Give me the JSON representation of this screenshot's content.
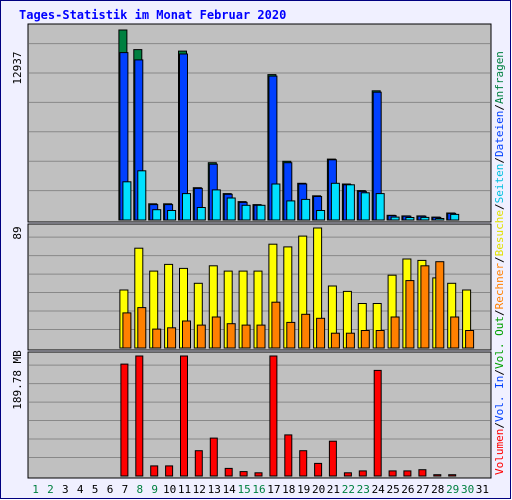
{
  "title": "Tages-Statistik im Monat Februar 2020",
  "colors": {
    "title": "#0000ff",
    "panel_bg": "#c0c0c0",
    "outer_bg": "#f0f0ff",
    "border": "#000080",
    "anfragen": "#008040",
    "dateien": "#0040ff",
    "seiten": "#00e0ff",
    "besuche": "#ffff00",
    "rechner": "#ff8000",
    "volumen": "#ff0000",
    "weekend_day": "#008040",
    "weekday": "#000000"
  },
  "y_scale_labels": {
    "top": "12937",
    "middle": "89",
    "bottom": "189.78 MB"
  },
  "legend_right": {
    "anfragen": "Anfragen",
    "dateien": "Dateien",
    "seiten": "Seiten",
    "besuche": "Besuche",
    "rechner": "Rechner",
    "out": "Vol. Out",
    "in": "Vol. In",
    "volumen": "Volumen",
    "sep": "/"
  },
  "days": [
    {
      "label": "1",
      "weekend": true
    },
    {
      "label": "2",
      "weekend": true
    },
    {
      "label": "3",
      "weekend": false
    },
    {
      "label": "4",
      "weekend": false
    },
    {
      "label": "5",
      "weekend": false
    },
    {
      "label": "6",
      "weekend": false
    },
    {
      "label": "7",
      "weekend": false
    },
    {
      "label": "8",
      "weekend": true
    },
    {
      "label": "9",
      "weekend": true
    },
    {
      "label": "10",
      "weekend": false
    },
    {
      "label": "11",
      "weekend": false
    },
    {
      "label": "12",
      "weekend": false
    },
    {
      "label": "13",
      "weekend": false
    },
    {
      "label": "14",
      "weekend": false
    },
    {
      "label": "15",
      "weekend": true
    },
    {
      "label": "16",
      "weekend": true
    },
    {
      "label": "17",
      "weekend": false
    },
    {
      "label": "18",
      "weekend": false
    },
    {
      "label": "19",
      "weekend": false
    },
    {
      "label": "20",
      "weekend": false
    },
    {
      "label": "21",
      "weekend": false
    },
    {
      "label": "22",
      "weekend": true
    },
    {
      "label": "23",
      "weekend": true
    },
    {
      "label": "24",
      "weekend": false
    },
    {
      "label": "25",
      "weekend": false
    },
    {
      "label": "26",
      "weekend": false
    },
    {
      "label": "27",
      "weekend": false
    },
    {
      "label": "28",
      "weekend": false
    },
    {
      "label": "29",
      "weekend": true
    },
    {
      "label": "30",
      "weekend": true
    },
    {
      "label": "31",
      "weekend": false
    }
  ],
  "chart_data": [
    {
      "type": "bar",
      "title": "Tages-Statistik im Monat Februar 2020",
      "ymax": 12937,
      "categories": [
        "1",
        "2",
        "3",
        "4",
        "5",
        "6",
        "7",
        "8",
        "9",
        "10",
        "11",
        "12",
        "13",
        "14",
        "15",
        "16",
        "17",
        "18",
        "19",
        "20",
        "21",
        "22",
        "23",
        "24",
        "25",
        "26",
        "27",
        "28",
        "29",
        "30",
        "31"
      ],
      "series": [
        {
          "name": "Anfragen",
          "color": "#008040",
          "values": [
            0,
            0,
            0,
            0,
            0,
            0,
            12937,
            11600,
            1100,
            1100,
            11500,
            2200,
            3900,
            1800,
            1250,
            1050,
            9900,
            4000,
            2500,
            1650,
            4150,
            2450,
            2000,
            8800,
            320,
            280,
            280,
            200,
            480,
            0,
            0
          ]
        },
        {
          "name": "Dateien",
          "color": "#0040ff",
          "values": [
            0,
            0,
            0,
            0,
            0,
            0,
            11400,
            10900,
            1050,
            1050,
            11300,
            2150,
            3800,
            1750,
            1200,
            1000,
            9800,
            3900,
            2450,
            1600,
            4100,
            2400,
            1950,
            8700,
            300,
            260,
            260,
            180,
            450,
            0,
            0
          ]
        },
        {
          "name": "Seiten",
          "color": "#00e0ff",
          "values": [
            0,
            0,
            0,
            0,
            0,
            0,
            2600,
            3350,
            700,
            650,
            1800,
            850,
            2050,
            1500,
            1000,
            1000,
            2450,
            1300,
            1400,
            650,
            2500,
            2400,
            1850,
            1800,
            200,
            170,
            180,
            100,
            380,
            0,
            0
          ]
        }
      ]
    },
    {
      "type": "bar",
      "ymax": 89,
      "categories": [
        "1",
        "2",
        "3",
        "4",
        "5",
        "6",
        "7",
        "8",
        "9",
        "10",
        "11",
        "12",
        "13",
        "14",
        "15",
        "16",
        "17",
        "18",
        "19",
        "20",
        "21",
        "22",
        "23",
        "24",
        "25",
        "26",
        "27",
        "28",
        "29",
        "30",
        "31"
      ],
      "series": [
        {
          "name": "Besuche",
          "color": "#ffff00",
          "values": [
            0,
            0,
            0,
            0,
            0,
            0,
            43,
            74,
            57,
            62,
            59,
            48,
            61,
            57,
            57,
            57,
            77,
            75,
            83,
            89,
            46,
            42,
            33,
            33,
            54,
            66,
            65,
            52,
            48,
            43,
            0
          ]
        },
        {
          "name": "Rechner",
          "color": "#ff8000",
          "values": [
            0,
            0,
            0,
            0,
            0,
            0,
            26,
            30,
            14,
            15,
            20,
            17,
            23,
            18,
            17,
            17,
            34,
            19,
            25,
            22,
            11,
            11,
            13,
            13,
            23,
            50,
            61,
            64,
            23,
            13,
            0
          ]
        }
      ]
    },
    {
      "type": "bar",
      "ymax": 189.78,
      "unit": "MB",
      "categories": [
        "1",
        "2",
        "3",
        "4",
        "5",
        "6",
        "7",
        "8",
        "9",
        "10",
        "11",
        "12",
        "13",
        "14",
        "15",
        "16",
        "17",
        "18",
        "19",
        "20",
        "21",
        "22",
        "23",
        "24",
        "25",
        "26",
        "27",
        "28",
        "29",
        "30",
        "31"
      ],
      "series": [
        {
          "name": "Volumen",
          "color": "#ff0000",
          "values": [
            0,
            0,
            0,
            0,
            0,
            0,
            177,
            189.78,
            16,
            16,
            189.78,
            40,
            60,
            12,
            7,
            5,
            189.78,
            65,
            40,
            20,
            55,
            5,
            8,
            167,
            8,
            8,
            10,
            2,
            2,
            0,
            0
          ]
        }
      ]
    }
  ]
}
